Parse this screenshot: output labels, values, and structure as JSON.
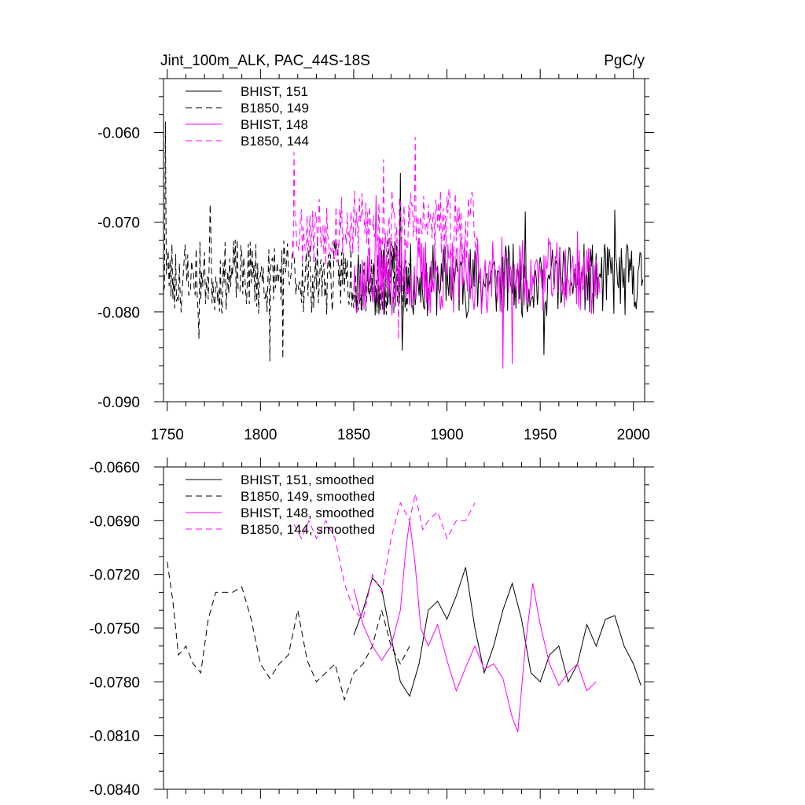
{
  "chart_data": [
    {
      "type": "line",
      "title": "Jint_100m_ALK, PAC_44S-18S",
      "units": "PgC/y",
      "xlim": [
        1748,
        2006
      ],
      "ylim": [
        -0.09,
        -0.054
      ],
      "yticks": [
        -0.09,
        -0.08,
        -0.07,
        -0.06
      ],
      "ytick_labels": [
        "-0.090",
        "-0.080",
        "-0.070",
        "-0.060"
      ],
      "xticks": [
        1750,
        1800,
        1850,
        1900,
        1950,
        2000
      ],
      "xtick_labels": [
        "1750",
        "1800",
        "1850",
        "1900",
        "1950",
        "2000"
      ],
      "grid": false,
      "legend": "top-left",
      "series": [
        {
          "name": "BHIST, 151",
          "color": "#000000",
          "dash": "solid",
          "x_start": 1850,
          "x_end": 2005,
          "base": -0.0765,
          "amp": 0.0038,
          "seed": 11,
          "peaks": [
            [
              1875,
              -0.0645
            ],
            [
              1942,
              -0.0688
            ],
            [
              1990,
              -0.0686
            ],
            [
              1876,
              -0.0843
            ],
            [
              1952,
              -0.0848
            ]
          ]
        },
        {
          "name": "B1850, 149",
          "color": "#000000",
          "dash": "dashed",
          "x_start": 1748,
          "x_end": 1880,
          "base": -0.076,
          "amp": 0.004,
          "seed": 23,
          "peaks": [
            [
              1749,
              -0.0588
            ],
            [
              1773,
              -0.068
            ],
            [
              1805,
              -0.0855
            ],
            [
              1812,
              -0.0852
            ],
            [
              1767,
              -0.083
            ]
          ]
        },
        {
          "name": "BHIST, 148",
          "color": "#ff00ff",
          "dash": "solid",
          "x_start": 1850,
          "x_end": 1982,
          "base": -0.076,
          "amp": 0.004,
          "seed": 37,
          "peaks": [
            [
              1862,
              -0.067
            ],
            [
              1930,
              -0.0863
            ],
            [
              1935,
              -0.0858
            ],
            [
              1970,
              -0.071
            ]
          ]
        },
        {
          "name": "B1850, 144",
          "color": "#ff00ff",
          "dash": "dashed",
          "x_start": 1817,
          "x_end": 1916,
          "base": -0.0705,
          "amp": 0.004,
          "seed": 53,
          "peaks": [
            [
              1818,
              -0.0622
            ],
            [
              1883,
              -0.0605
            ],
            [
              1866,
              -0.063
            ],
            [
              1874,
              -0.083
            ]
          ]
        }
      ]
    },
    {
      "type": "line",
      "title": "",
      "xlim": [
        1748,
        2006
      ],
      "ylim": [
        -0.084,
        -0.066
      ],
      "yticks": [
        -0.084,
        -0.081,
        -0.078,
        -0.075,
        -0.072,
        -0.069,
        -0.066
      ],
      "ytick_labels": [
        "-0.0840",
        "-0.0810",
        "-0.0780",
        "-0.0750",
        "-0.0720",
        "-0.0690",
        "-0.0660"
      ],
      "xticks": [
        1750,
        1800,
        1850,
        1900,
        1950,
        2000
      ],
      "grid": false,
      "legend": "top-left",
      "series": [
        {
          "name": "BHIST, 151, smoothed",
          "color": "#000000",
          "dash": "solid",
          "x": [
            1850,
            1855,
            1860,
            1865,
            1870,
            1875,
            1880,
            1885,
            1890,
            1895,
            1900,
            1905,
            1910,
            1915,
            1920,
            1925,
            1930,
            1935,
            1940,
            1945,
            1950,
            1955,
            1960,
            1965,
            1970,
            1975,
            1980,
            1985,
            1990,
            1995,
            2000,
            2004
          ],
          "y": [
            -0.0754,
            -0.074,
            -0.0722,
            -0.0728,
            -0.0755,
            -0.078,
            -0.0788,
            -0.077,
            -0.074,
            -0.0735,
            -0.0745,
            -0.0732,
            -0.0716,
            -0.075,
            -0.0775,
            -0.076,
            -0.074,
            -0.0725,
            -0.0745,
            -0.0775,
            -0.078,
            -0.0765,
            -0.076,
            -0.078,
            -0.077,
            -0.0748,
            -0.076,
            -0.0745,
            -0.0743,
            -0.076,
            -0.077,
            -0.0782
          ]
        },
        {
          "name": "B1850, 149, smoothed",
          "color": "#000000",
          "dash": "dashed",
          "x": [
            1750,
            1753,
            1756,
            1760,
            1764,
            1768,
            1772,
            1776,
            1780,
            1785,
            1790,
            1795,
            1800,
            1805,
            1810,
            1815,
            1820,
            1825,
            1830,
            1835,
            1840,
            1845,
            1850,
            1855,
            1860,
            1865,
            1870,
            1875,
            1880
          ],
          "y": [
            -0.0713,
            -0.0735,
            -0.0765,
            -0.076,
            -0.077,
            -0.0775,
            -0.0745,
            -0.073,
            -0.073,
            -0.073,
            -0.0727,
            -0.0745,
            -0.077,
            -0.0778,
            -0.077,
            -0.0765,
            -0.074,
            -0.0768,
            -0.078,
            -0.0775,
            -0.077,
            -0.079,
            -0.0775,
            -0.077,
            -0.076,
            -0.074,
            -0.076,
            -0.077,
            -0.076
          ]
        },
        {
          "name": "BHIST, 148, smoothed",
          "color": "#ff00ff",
          "dash": "solid",
          "x": [
            1850,
            1855,
            1860,
            1865,
            1870,
            1875,
            1878,
            1880,
            1883,
            1886,
            1890,
            1895,
            1900,
            1905,
            1910,
            1915,
            1920,
            1925,
            1930,
            1935,
            1938,
            1942,
            1946,
            1950,
            1955,
            1960,
            1965,
            1970,
            1975,
            1980
          ],
          "y": [
            -0.0728,
            -0.0748,
            -0.076,
            -0.0768,
            -0.076,
            -0.074,
            -0.0705,
            -0.069,
            -0.0715,
            -0.075,
            -0.076,
            -0.0748,
            -0.0768,
            -0.0785,
            -0.0772,
            -0.076,
            -0.0773,
            -0.077,
            -0.0778,
            -0.08,
            -0.0808,
            -0.076,
            -0.0725,
            -0.0748,
            -0.077,
            -0.0782,
            -0.0775,
            -0.077,
            -0.0785,
            -0.078
          ]
        },
        {
          "name": "B1850, 144, smoothed",
          "color": "#ff00ff",
          "dash": "dashed",
          "x": [
            1818,
            1822,
            1826,
            1830,
            1835,
            1840,
            1845,
            1850,
            1855,
            1860,
            1865,
            1870,
            1875,
            1880,
            1883,
            1887,
            1890,
            1895,
            1900,
            1905,
            1910,
            1915
          ],
          "y": [
            -0.0692,
            -0.07,
            -0.069,
            -0.07,
            -0.069,
            -0.07,
            -0.0725,
            -0.074,
            -0.0745,
            -0.072,
            -0.073,
            -0.07,
            -0.068,
            -0.069,
            -0.0675,
            -0.0695,
            -0.069,
            -0.0685,
            -0.07,
            -0.069,
            -0.069,
            -0.068
          ]
        }
      ]
    }
  ]
}
